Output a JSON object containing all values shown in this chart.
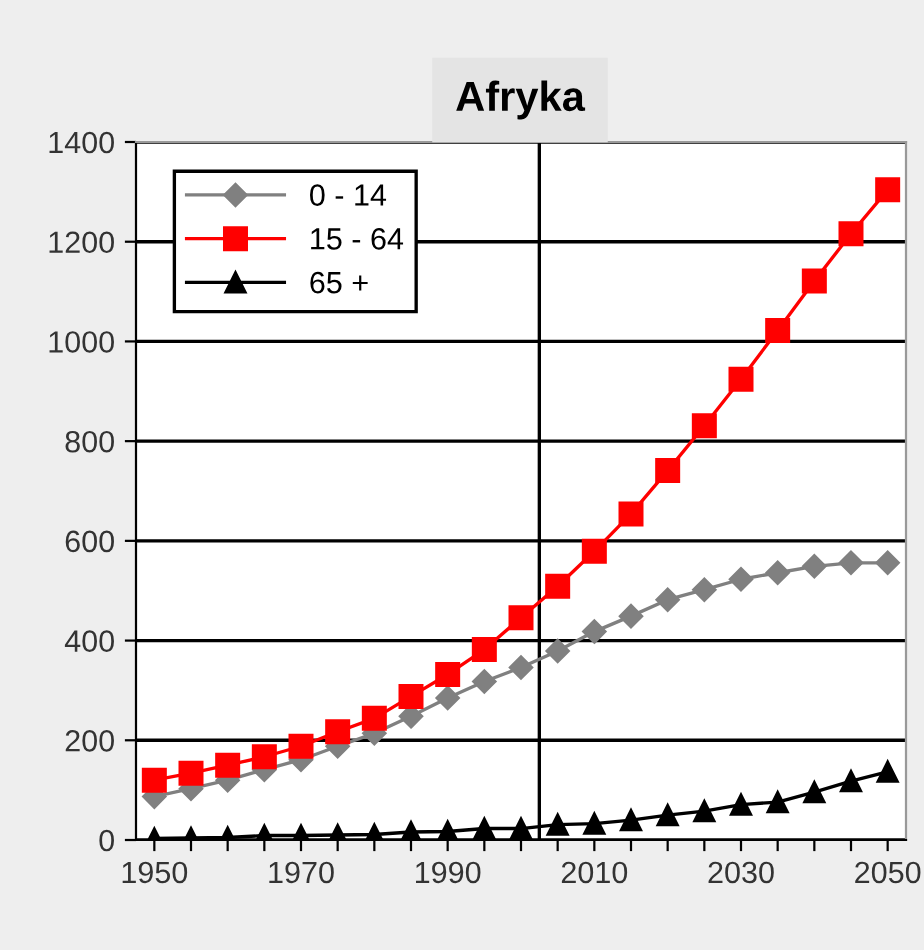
{
  "chart_data": {
    "type": "line",
    "title": "Afryka",
    "x": [
      1950,
      1955,
      1960,
      1965,
      1970,
      1975,
      1980,
      1985,
      1990,
      1995,
      2000,
      2005,
      2010,
      2015,
      2020,
      2025,
      2030,
      2035,
      2040,
      2045,
      2050
    ],
    "series": [
      {
        "name": "0 - 14",
        "color": "#808080",
        "marker": "diamond",
        "values": [
          87,
          103,
          120,
          141,
          161,
          188,
          214,
          248,
          285,
          318,
          346,
          379,
          418,
          449,
          482,
          502,
          523,
          536,
          549,
          556,
          556
        ]
      },
      {
        "name": "15 - 64",
        "color": "#ff0000",
        "marker": "square",
        "values": [
          120,
          134,
          150,
          167,
          188,
          217,
          244,
          288,
          332,
          382,
          446,
          509,
          579,
          654,
          741,
          831,
          924,
          1022,
          1121,
          1216,
          1304
        ]
      },
      {
        "name": "65 +",
        "color": "#000000",
        "marker": "triangle",
        "values": [
          3,
          4,
          5,
          9,
          9,
          10,
          11,
          16,
          17,
          23,
          23,
          31,
          33,
          40,
          50,
          58,
          71,
          76,
          96,
          118,
          137
        ]
      }
    ],
    "xlim": [
      1947.5,
      2052.5
    ],
    "xticks": [
      1950,
      {
        "value": 1955,
        "label": null
      },
      {
        "value": 1960,
        "label": null
      },
      {
        "value": 1965,
        "label": null
      },
      1970,
      {
        "value": 1975,
        "label": null
      },
      {
        "value": 1980,
        "label": null
      },
      {
        "value": 1985,
        "label": null
      },
      1990,
      {
        "value": 1995,
        "label": null
      },
      {
        "value": 2000,
        "label": null
      },
      {
        "value": 2005,
        "label": null
      },
      2010,
      {
        "value": 2015,
        "label": null
      },
      {
        "value": 2020,
        "label": null
      },
      {
        "value": 2025,
        "label": null
      },
      2030,
      {
        "value": 2035,
        "label": null
      },
      {
        "value": 2040,
        "label": null
      },
      {
        "value": 2045,
        "label": null
      },
      2050
    ],
    "ylim": [
      0,
      1400
    ],
    "yticks": [
      0,
      200,
      400,
      600,
      800,
      1000,
      1200,
      1400
    ],
    "ref_lines": [
      {
        "axis": "x",
        "value": 2002.5,
        "color": "#000000"
      }
    ],
    "grid": "y",
    "legend": "top left",
    "line_style": "solid"
  }
}
